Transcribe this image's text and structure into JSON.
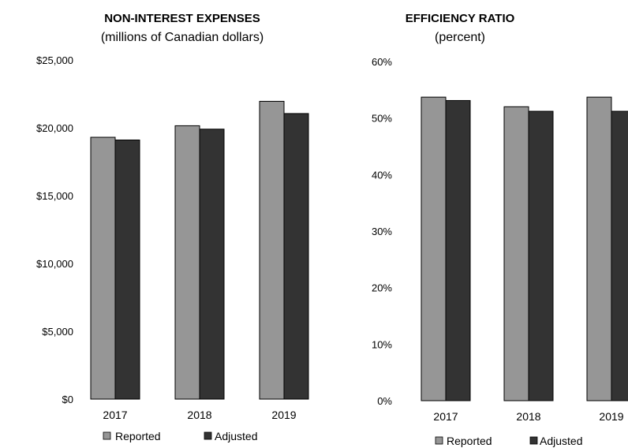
{
  "chart_data": [
    {
      "type": "bar",
      "title": "NON-INTEREST EXPENSES",
      "subtitle": "(millions of Canadian dollars)",
      "categories": [
        "2017",
        "2018",
        "2019"
      ],
      "series": [
        {
          "name": "Reported",
          "values": [
            19300,
            20150,
            21950
          ],
          "color": "#969696"
        },
        {
          "name": "Adjusted",
          "values": [
            19100,
            19900,
            21050
          ],
          "color": "#333333"
        }
      ],
      "ylim": [
        0,
        25000
      ],
      "yticks": [
        0,
        5000,
        10000,
        15000,
        20000,
        25000
      ],
      "ytick_labels": [
        "$0",
        "$5,000",
        "$10,000",
        "$15,000",
        "$20,000",
        "$25,000"
      ],
      "grid": false,
      "legend": "bottom"
    },
    {
      "type": "bar",
      "title": "EFFICIENCY RATIO",
      "subtitle": "(percent)",
      "categories": [
        "2017",
        "2018",
        "2019"
      ],
      "series": [
        {
          "name": "Reported",
          "values": [
            53.7,
            52.0,
            53.7
          ],
          "color": "#969696"
        },
        {
          "name": "Adjusted",
          "values": [
            53.1,
            51.2,
            51.2
          ],
          "color": "#333333"
        }
      ],
      "ylim": [
        0,
        60
      ],
      "yticks": [
        0,
        10,
        20,
        30,
        40,
        50,
        60
      ],
      "ytick_labels": [
        "0%",
        "10%",
        "20%",
        "30%",
        "40%",
        "50%",
        "60%"
      ],
      "grid": false,
      "legend": "bottom"
    }
  ]
}
